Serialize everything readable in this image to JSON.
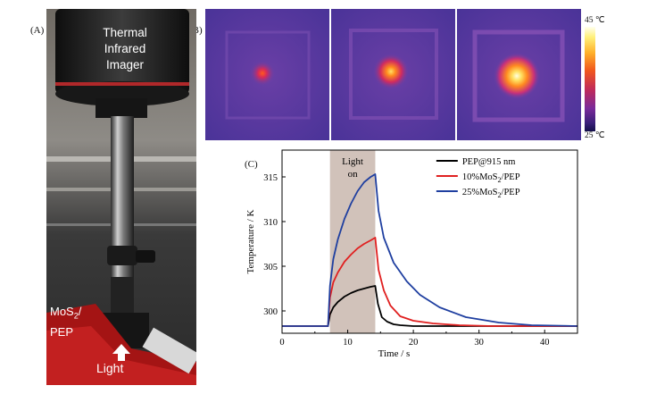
{
  "panels": {
    "a": {
      "label": "(A)"
    },
    "b": {
      "label": "(B)"
    },
    "c": {
      "label": "(C)"
    }
  },
  "photo": {
    "imager_label": [
      "Thermal",
      "Infrared",
      "Imager"
    ],
    "sample_label_main": "MoS",
    "sample_label_sub": "2",
    "sample_label_slash": "/",
    "sample_label_line2": "PEP",
    "light_label": "Light"
  },
  "thermal_images": {
    "spot_intensities": [
      0.3,
      0.65,
      1.0
    ],
    "colorbar": {
      "max_label": "45 ℃",
      "min_label": "25 ℃"
    }
  },
  "chart_data": {
    "type": "line",
    "xlabel": "Time / s",
    "ylabel": "Temperature / K",
    "xlim": [
      0,
      45
    ],
    "ylim": [
      297.5,
      318
    ],
    "xticks": [
      0,
      10,
      20,
      30,
      40
    ],
    "yticks": [
      300,
      305,
      310,
      315
    ],
    "shaded_region": {
      "x": [
        7.3,
        14.2
      ],
      "label_line1": "Light",
      "label_line2": "on",
      "color": "#c9b7ae"
    },
    "series": [
      {
        "name": "PEP@915 nm",
        "color": "#000000",
        "x": [
          0,
          7,
          7.3,
          7.8,
          8.5,
          9.5,
          10.5,
          11.5,
          12.5,
          13.5,
          14.2,
          14.6,
          15.2,
          16,
          17,
          18,
          20,
          25,
          30,
          40,
          45
        ],
        "y": [
          298.3,
          298.3,
          299.6,
          300.4,
          301.0,
          301.6,
          302.0,
          302.3,
          302.5,
          302.7,
          302.8,
          300.8,
          299.3,
          298.8,
          298.5,
          298.4,
          298.3,
          298.3,
          298.3,
          298.3,
          298.3
        ]
      },
      {
        "name": "10%MoS2/PEP",
        "color": "#e02020",
        "x": [
          0,
          7,
          7.3,
          7.8,
          8.5,
          9.5,
          10.5,
          11.5,
          12.5,
          13.5,
          14.2,
          14.7,
          15.5,
          16.5,
          18,
          20,
          23,
          27,
          32,
          40,
          45
        ],
        "y": [
          298.3,
          298.3,
          301.5,
          303.2,
          304.3,
          305.5,
          306.3,
          307.0,
          307.5,
          307.9,
          308.2,
          304.6,
          302.3,
          300.6,
          299.4,
          298.9,
          298.6,
          298.4,
          298.3,
          298.3,
          298.3
        ]
      },
      {
        "name": "25%MoS2/PEP",
        "color": "#1f3fa0",
        "x": [
          0,
          7,
          7.3,
          7.8,
          8.5,
          9.5,
          10.5,
          11.5,
          12.5,
          13.5,
          14.2,
          14.7,
          15.5,
          17,
          19,
          21,
          24,
          28,
          33,
          38,
          45
        ],
        "y": [
          298.3,
          298.3,
          302.8,
          305.8,
          308.0,
          310.3,
          312.0,
          313.4,
          314.4,
          315.0,
          315.3,
          311.2,
          308.2,
          305.4,
          303.3,
          301.8,
          300.4,
          299.3,
          298.7,
          298.4,
          298.3
        ]
      }
    ],
    "legend": {
      "position": "top-right",
      "entries": [
        {
          "text": "PEP@915 nm",
          "color": "#000000"
        },
        {
          "pre": "10%MoS",
          "sub": "2",
          "post": "/PEP",
          "color": "#e02020"
        },
        {
          "pre": "25%MoS",
          "sub": "2",
          "post": "/PEP",
          "color": "#1f3fa0"
        }
      ]
    }
  }
}
